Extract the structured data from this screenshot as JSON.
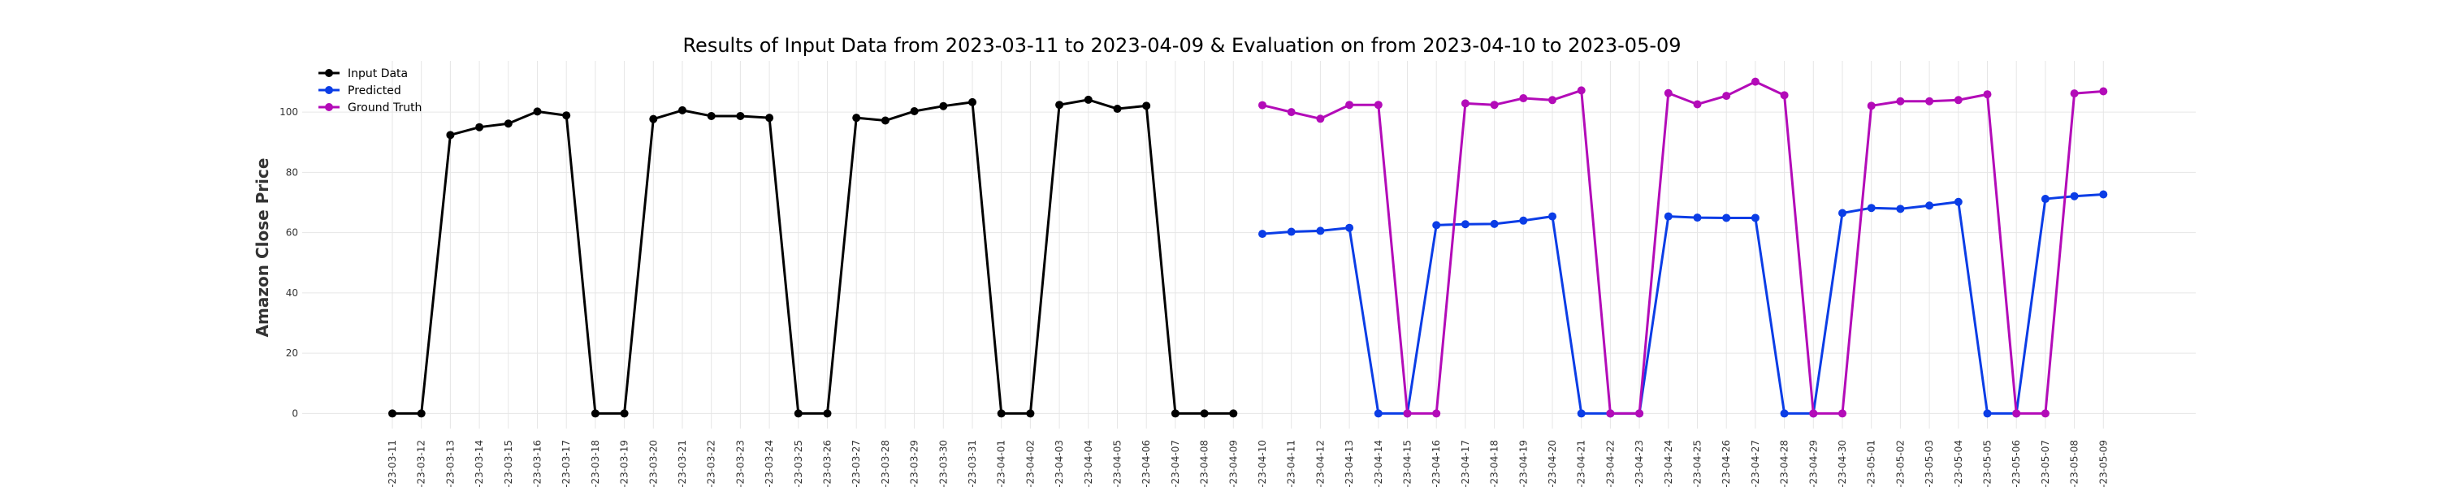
{
  "chart_data": {
    "type": "line",
    "title": "Results of Input Data from 2023-03-11 to 2023-04-09 & Evaluation on from 2023-04-10 to 2023-05-09",
    "xlabel": "",
    "ylabel": "Amazon Close Price",
    "ylim": [
      -5,
      117
    ],
    "yticks": [
      0,
      20,
      40,
      60,
      80,
      100
    ],
    "grid": true,
    "legend_position": "top-left",
    "categories": [
      "2023-03-11",
      "2023-03-12",
      "2023-03-13",
      "2023-03-14",
      "2023-03-15",
      "2023-03-16",
      "2023-03-17",
      "2023-03-18",
      "2023-03-19",
      "2023-03-20",
      "2023-03-21",
      "2023-03-22",
      "2023-03-23",
      "2023-03-24",
      "2023-03-25",
      "2023-03-26",
      "2023-03-27",
      "2023-03-28",
      "2023-03-29",
      "2023-03-30",
      "2023-03-31",
      "2023-04-01",
      "2023-04-02",
      "2023-04-03",
      "2023-04-04",
      "2023-04-05",
      "2023-04-06",
      "2023-04-07",
      "2023-04-08",
      "2023-04-09",
      "2023-04-10",
      "2023-04-11",
      "2023-04-12",
      "2023-04-13",
      "2023-04-14",
      "2023-04-15",
      "2023-04-16",
      "2023-04-17",
      "2023-04-18",
      "2023-04-19",
      "2023-04-20",
      "2023-04-21",
      "2023-04-22",
      "2023-04-23",
      "2023-04-24",
      "2023-04-25",
      "2023-04-26",
      "2023-04-27",
      "2023-04-28",
      "2023-04-29",
      "2023-04-30",
      "2023-05-01",
      "2023-05-02",
      "2023-05-03",
      "2023-05-04",
      "2023-05-05",
      "2023-05-06",
      "2023-05-07",
      "2023-05-08",
      "2023-05-09"
    ],
    "tick_labels": [
      "-23-03-11",
      "-23-03-12",
      "-23-03-13",
      "-23-03-14",
      "-23-03-15",
      "-23-03-16",
      "-23-03-17",
      "-23-03-18",
      "-23-03-19",
      "-23-03-20",
      "-23-03-21",
      "-23-03-22",
      "-23-03-23",
      "-23-03-24",
      "-23-03-25",
      "-23-03-26",
      "-23-03-27",
      "-23-03-28",
      "-23-03-29",
      "-23-03-30",
      "-23-03-31",
      "-23-04-01",
      "-23-04-02",
      "-23-04-03",
      "-23-04-04",
      "-23-04-05",
      "-23-04-06",
      "-23-04-07",
      "-23-04-08",
      "-23-04-09",
      "-23-04-10",
      "-23-04-11",
      "-23-04-12",
      "-23-04-13",
      "-23-04-14",
      "-23-04-15",
      "-23-04-16",
      "-23-04-17",
      "-23-04-18",
      "-23-04-19",
      "-23-04-20",
      "-23-04-21",
      "-23-04-22",
      "-23-04-23",
      "-23-04-24",
      "-23-04-25",
      "-23-04-26",
      "-23-04-27",
      "-23-04-28",
      "-23-04-29",
      "-23-04-30",
      "-23-05-01",
      "-23-05-02",
      "-23-05-03",
      "-23-05-04",
      "-23-05-05",
      "-23-05-06",
      "-23-05-07",
      "-23-05-08",
      "-23-05-09"
    ],
    "series": [
      {
        "name": "Input Data",
        "color": "#000000",
        "x": [
          "2023-03-11",
          "2023-03-12",
          "2023-03-13",
          "2023-03-14",
          "2023-03-15",
          "2023-03-16",
          "2023-03-17",
          "2023-03-18",
          "2023-03-19",
          "2023-03-20",
          "2023-03-21",
          "2023-03-22",
          "2023-03-23",
          "2023-03-24",
          "2023-03-25",
          "2023-03-26",
          "2023-03-27",
          "2023-03-28",
          "2023-03-29",
          "2023-03-30",
          "2023-03-31",
          "2023-04-01",
          "2023-04-02",
          "2023-04-03",
          "2023-04-04",
          "2023-04-05",
          "2023-04-06",
          "2023-04-07",
          "2023-04-08",
          "2023-04-09"
        ],
        "values": [
          0,
          0,
          92.4,
          95,
          96.2,
          100.2,
          98.9,
          0,
          0,
          97.7,
          100.6,
          98.7,
          98.7,
          98.1,
          0,
          0,
          98.1,
          97.2,
          100.3,
          102,
          103.3,
          0,
          0,
          102.4,
          104.1,
          101.1,
          102.1,
          0,
          0,
          0
        ]
      },
      {
        "name": "Predicted",
        "color": "#0b3de6",
        "x": [
          "2023-04-10",
          "2023-04-11",
          "2023-04-12",
          "2023-04-13",
          "2023-04-14",
          "2023-04-15",
          "2023-04-16",
          "2023-04-17",
          "2023-04-18",
          "2023-04-19",
          "2023-04-20",
          "2023-04-21",
          "2023-04-22",
          "2023-04-23",
          "2023-04-24",
          "2023-04-25",
          "2023-04-26",
          "2023-04-27",
          "2023-04-28",
          "2023-04-29",
          "2023-04-30",
          "2023-05-01",
          "2023-05-02",
          "2023-05-03",
          "2023-05-04",
          "2023-05-05",
          "2023-05-06",
          "2023-05-07",
          "2023-05-08",
          "2023-05-09"
        ],
        "values": [
          59.6,
          60.3,
          60.6,
          61.6,
          0,
          0,
          62.5,
          62.8,
          62.9,
          64,
          65.4,
          0,
          0,
          0,
          65.4,
          65,
          64.9,
          64.9,
          0,
          0,
          66.5,
          68.2,
          67.9,
          69,
          70.2,
          0,
          0,
          71.2,
          72.1,
          72.7
        ]
      },
      {
        "name": "Ground Truth",
        "color": "#b30bb8",
        "x": [
          "2023-04-10",
          "2023-04-11",
          "2023-04-12",
          "2023-04-13",
          "2023-04-14",
          "2023-04-15",
          "2023-04-16",
          "2023-04-17",
          "2023-04-18",
          "2023-04-19",
          "2023-04-20",
          "2023-04-21",
          "2023-04-22",
          "2023-04-23",
          "2023-04-24",
          "2023-04-25",
          "2023-04-26",
          "2023-04-27",
          "2023-04-28",
          "2023-04-29",
          "2023-04-30",
          "2023-05-01",
          "2023-05-02",
          "2023-05-03",
          "2023-05-04",
          "2023-05-05",
          "2023-05-06",
          "2023-05-07",
          "2023-05-08",
          "2023-05-09"
        ],
        "values": [
          102.3,
          100,
          97.8,
          102.4,
          102.4,
          0,
          0,
          102.9,
          102.4,
          104.6,
          104,
          107.2,
          0,
          0,
          106.3,
          102.6,
          105.4,
          110.1,
          105.6,
          0,
          0,
          102.1,
          103.6,
          103.6,
          104,
          105.9,
          0,
          0,
          106.2,
          106.9
        ]
      }
    ]
  }
}
